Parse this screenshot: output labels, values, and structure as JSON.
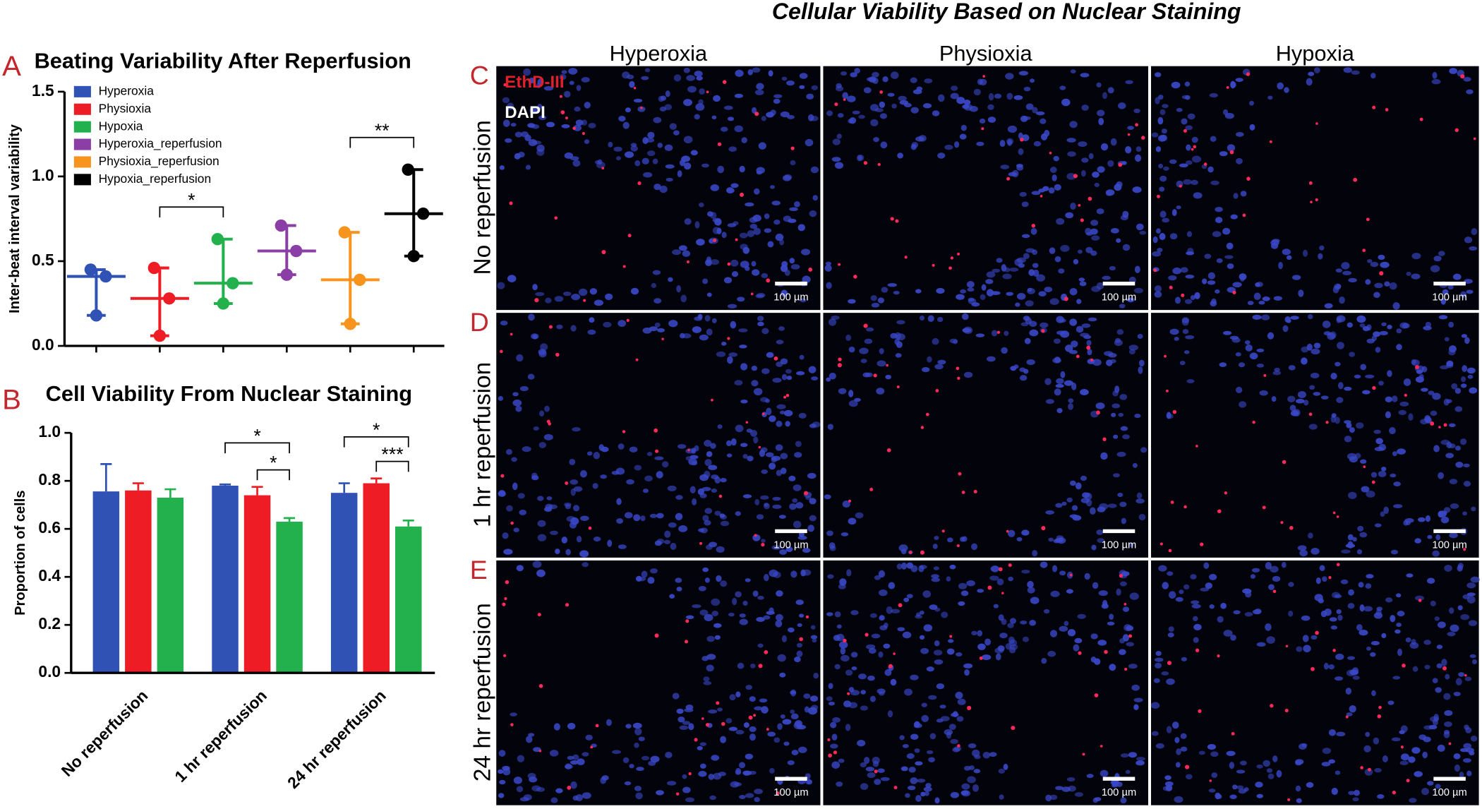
{
  "chart_data": [
    {
      "type": "scatter",
      "panel_label": "A",
      "title": "Beating Variability After Reperfusion",
      "ylabel": "Inter-beat interval variability",
      "series": [
        {
          "name": "Hyperoxia",
          "color": "#3152b5",
          "values": [
            0.45,
            0.41,
            0.18
          ],
          "median": 0.41
        },
        {
          "name": "Physioxia",
          "color": "#ee1c25",
          "values": [
            0.46,
            0.28,
            0.06
          ],
          "median": 0.28
        },
        {
          "name": "Hypoxia",
          "color": "#22b14c",
          "values": [
            0.63,
            0.37,
            0.25
          ],
          "median": 0.37
        },
        {
          "name": "Hyperoxia_reperfusion",
          "color": "#8b3fa6",
          "values": [
            0.71,
            0.56,
            0.42
          ],
          "median": 0.56
        },
        {
          "name": "Physioxia_reperfusion",
          "color": "#f7941d",
          "values": [
            0.67,
            0.39,
            0.13
          ],
          "median": 0.39
        },
        {
          "name": "Hypoxia_reperfusion",
          "color": "#000000",
          "values": [
            1.04,
            0.78,
            0.53
          ],
          "median": 0.78
        }
      ],
      "ylim": [
        0,
        1.5
      ],
      "yticks": [
        {
          "value": 0,
          "label": "0.0"
        },
        {
          "value": 0.5,
          "label": "0.5"
        },
        {
          "value": 1,
          "label": "1.0"
        },
        {
          "value": 1.5,
          "label": "1.5"
        }
      ],
      "legend": "top-left",
      "annotations": [
        {
          "text": "*",
          "from": 1,
          "to": 2
        },
        {
          "text": "**",
          "from": 4,
          "to": 5
        }
      ]
    },
    {
      "type": "bar",
      "panel_label": "B",
      "title": "Cell Viability From Nuclear Staining",
      "ylabel": "Proportion of cells",
      "categories": [
        "No reperfusion",
        "1 hr reperfusion",
        "24 hr reperfusion"
      ],
      "series": [
        {
          "color": "#3152b5",
          "values": [
            0.756,
            0.78,
            0.75
          ],
          "errors": [
            0.114,
            0.005,
            0.04
          ]
        },
        {
          "color": "#ee1c25",
          "values": [
            0.76,
            0.74,
            0.79
          ],
          "errors": [
            0.03,
            0.035,
            0.02
          ]
        },
        {
          "color": "#22b14c",
          "values": [
            0.73,
            0.63,
            0.61
          ],
          "errors": [
            0.035,
            0.015,
            0.025
          ]
        }
      ],
      "ylim": [
        0,
        1
      ],
      "yticks": [
        {
          "value": 0,
          "label": "0.0"
        },
        {
          "value": 0.2,
          "label": "0.2"
        },
        {
          "value": 0.4,
          "label": "0.4"
        },
        {
          "value": 0.6,
          "label": "0.6"
        },
        {
          "value": 0.8,
          "label": "0.8"
        },
        {
          "value": 1,
          "label": "1.0"
        }
      ],
      "annotations": [
        {
          "text": "*",
          "category": 1,
          "from": 0,
          "to": 2
        },
        {
          "text": "*",
          "category": 1,
          "from": 1,
          "to": 2
        },
        {
          "text": "*",
          "category": 2,
          "from": 0,
          "to": 2
        },
        {
          "text": "***",
          "category": 2,
          "from": 1,
          "to": 2
        }
      ]
    }
  ],
  "figure": {
    "title": "Cellular Viability Based on Nuclear Staining",
    "columns": [
      "Hyperoxia",
      "Physioxia",
      "Hypoxia"
    ],
    "rows": [
      "No reperfusion",
      "1 hr reperfusion",
      "24 hr reperfusion"
    ],
    "panel_labels": [
      "C",
      "D",
      "E"
    ],
    "stains": [
      "EthD-III",
      "DAPI"
    ],
    "scale_bar": "100 µm"
  }
}
